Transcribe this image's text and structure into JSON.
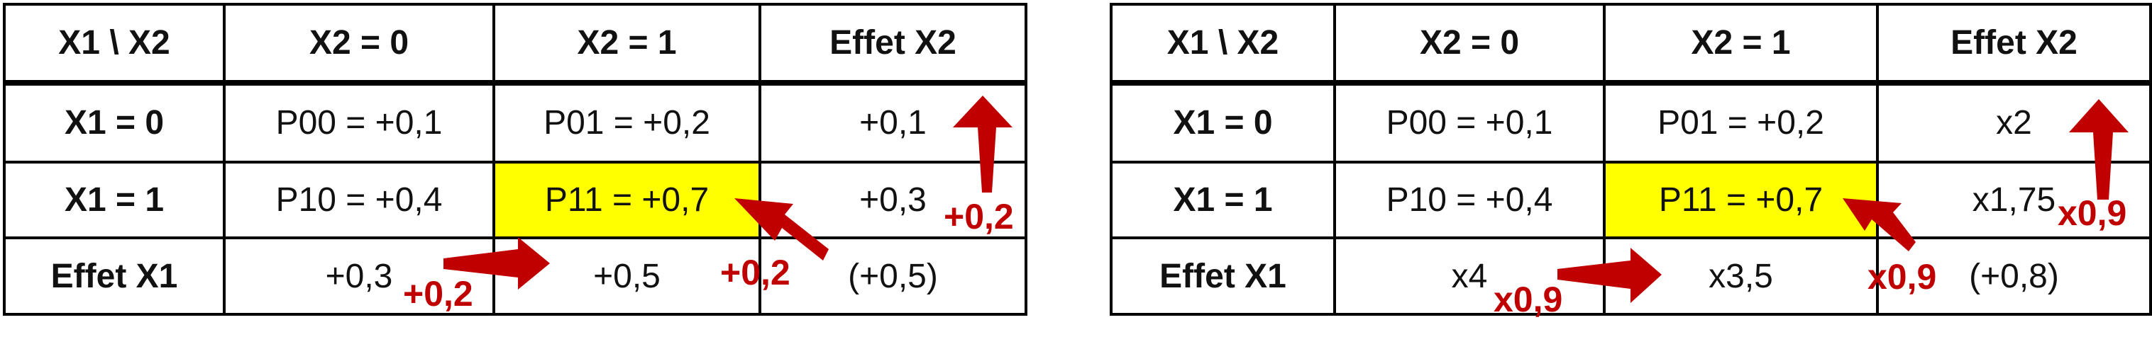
{
  "left_table": {
    "header": [
      "X1 \\ X2",
      "X2 = 0",
      "X2 = 1",
      "Effet X2"
    ],
    "rows": [
      [
        "X1 = 0",
        "P00 = +0,1",
        "P01 = +0,2",
        "+0,1"
      ],
      [
        "X1 = 1",
        "P10 = +0,4",
        "P11 = +0,7",
        "+0,3"
      ],
      [
        "Effet X1",
        "+0,3",
        "+0,5",
        "(+0,5)"
      ]
    ],
    "annotations": {
      "effect_x2_change": "+0,2",
      "effect_x1_change": "+0,2",
      "interaction_change": "+0,2"
    }
  },
  "right_table": {
    "header": [
      "X1 \\ X2",
      "X2 = 0",
      "X2 = 1",
      "Effet X2"
    ],
    "rows": [
      [
        "X1 = 0",
        "P00 = +0,1",
        "P01 = +0,2",
        "x2"
      ],
      [
        "X1 = 1",
        "P10 = +0,4",
        "P11 = +0,7",
        "x1,75"
      ],
      [
        "Effet X1",
        "x4",
        "x3,5",
        "(+0,8)"
      ]
    ],
    "annotations": {
      "effect_x2_change": "x0,9",
      "effect_x1_change": "x0,9",
      "interaction_change": "x0,9"
    }
  },
  "colors": {
    "highlight": "#ffff00",
    "arrow": "#c00000",
    "border": "#000000"
  },
  "icons": [
    "arrow-up-icon",
    "arrow-right-icon",
    "arrow-up-left-icon"
  ]
}
